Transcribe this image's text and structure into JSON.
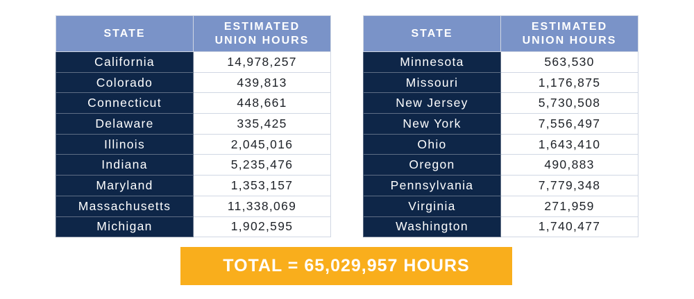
{
  "headers": {
    "state": "STATE",
    "hours_line1": "ESTIMATED",
    "hours_line2": "UNION HOURS"
  },
  "left_table": [
    {
      "state": "California",
      "hours": "14,978,257"
    },
    {
      "state": "Colorado",
      "hours": "439,813"
    },
    {
      "state": "Connecticut",
      "hours": "448,661"
    },
    {
      "state": "Delaware",
      "hours": "335,425"
    },
    {
      "state": "Illinois",
      "hours": "2,045,016"
    },
    {
      "state": "Indiana",
      "hours": "5,235,476"
    },
    {
      "state": "Maryland",
      "hours": "1,353,157"
    },
    {
      "state": "Massachusetts",
      "hours": "11,338,069"
    },
    {
      "state": "Michigan",
      "hours": "1,902,595"
    }
  ],
  "right_table": [
    {
      "state": "Minnesota",
      "hours": "563,530"
    },
    {
      "state": "Missouri",
      "hours": "1,176,875"
    },
    {
      "state": "New Jersey",
      "hours": "5,730,508"
    },
    {
      "state": "New York",
      "hours": "7,556,497"
    },
    {
      "state": "Ohio",
      "hours": "1,643,410"
    },
    {
      "state": "Oregon",
      "hours": "490,883"
    },
    {
      "state": "Pennsylvania",
      "hours": "7,779,348"
    },
    {
      "state": "Virginia",
      "hours": "271,959"
    },
    {
      "state": "Washington",
      "hours": "1,740,477"
    }
  ],
  "total_label": "TOTAL = 65,029,957 HOURS",
  "colors": {
    "header_bg": "#7a93c8",
    "state_cell_bg": "#0e2648",
    "total_bg": "#f9ae1c"
  }
}
